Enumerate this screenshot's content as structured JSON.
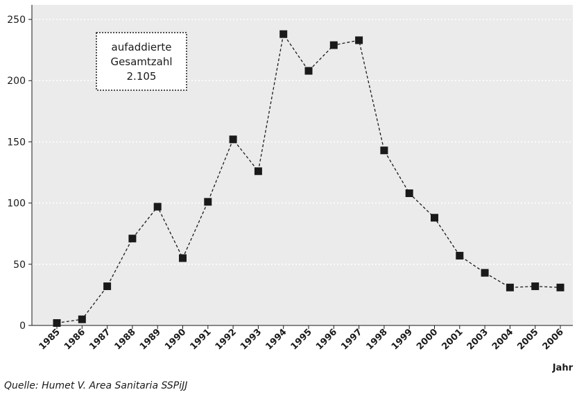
{
  "chart_data": {
    "type": "line",
    "categories": [
      "1985",
      "1986",
      "1987",
      "1988",
      "1989",
      "1990",
      "1991",
      "1992",
      "1993",
      "1994",
      "1995",
      "1996",
      "1997",
      "1998",
      "1999",
      "2000",
      "2001",
      "2003",
      "2004",
      "2005",
      "2006"
    ],
    "values": [
      2,
      5,
      32,
      71,
      97,
      55,
      101,
      152,
      126,
      238,
      208,
      229,
      233,
      143,
      108,
      88,
      57,
      43,
      31,
      32,
      31
    ],
    "xlabel": "Jahr",
    "ylabel": "",
    "ylim": [
      0,
      250
    ],
    "yticks": [
      0,
      50,
      100,
      150,
      200,
      250
    ],
    "grid": true,
    "background": "#ebebeb",
    "line_color": "#1a1a1a",
    "line_style": "dashed",
    "marker": "square",
    "annotation": {
      "lines": [
        "aufaddierte",
        "Gesamtzahl",
        "2.105"
      ]
    }
  },
  "source": "Quelle: Humet V. Area Sanitaria SSPiJJ"
}
